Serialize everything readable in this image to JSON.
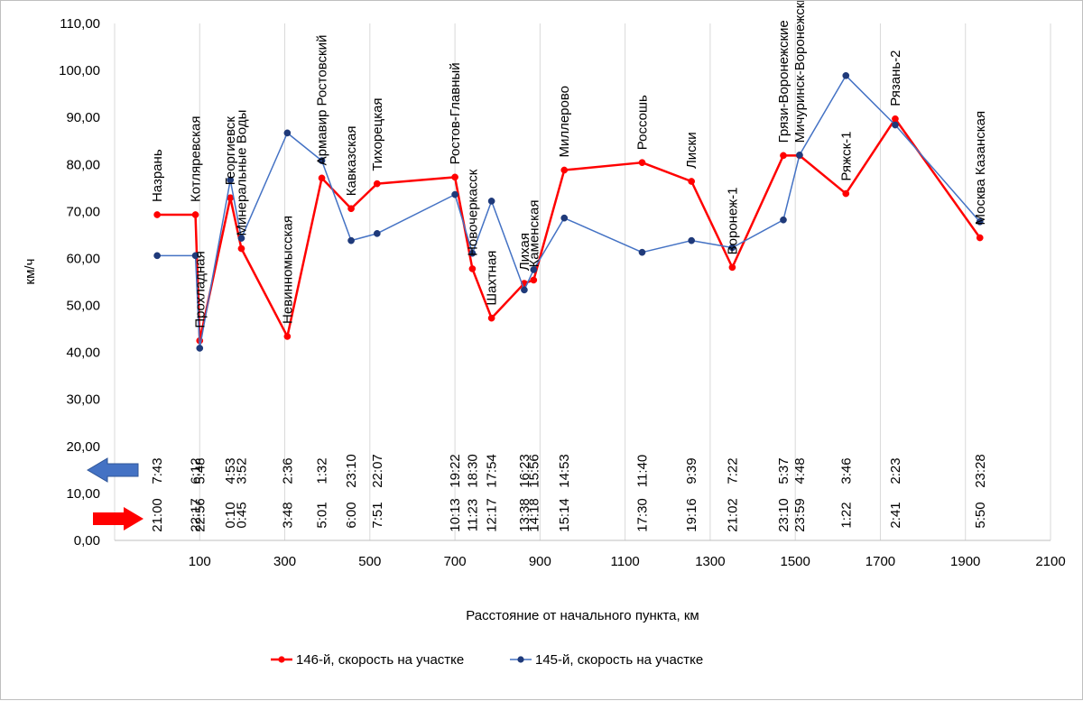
{
  "chart_data": {
    "type": "line",
    "xlabel": "Расстояние от начального пункта, км",
    "ylabel": "км/ч",
    "xlim": [
      -100,
      2100
    ],
    "ylim": [
      0,
      110
    ],
    "x_ticks": [
      "100",
      "300",
      "500",
      "700",
      "900",
      "1100",
      "1300",
      "1500",
      "1700",
      "1900",
      "2100"
    ],
    "x_tick_values": [
      100,
      300,
      500,
      700,
      900,
      1100,
      1300,
      1500,
      1700,
      1900,
      2100
    ],
    "y_ticks": [
      "0,00",
      "10,00",
      "20,00",
      "30,00",
      "40,00",
      "50,00",
      "60,00",
      "70,00",
      "80,00",
      "90,00",
      "100,00",
      "110,00"
    ],
    "y_tick_values": [
      0,
      10,
      20,
      30,
      40,
      50,
      60,
      70,
      80,
      90,
      100,
      110
    ],
    "gridlines": "vertical",
    "legend_position": "bottom",
    "series": [
      {
        "name": "146-й, скорость на участке",
        "color": "#ff0000",
        "x": [
          0,
          90,
          100,
          172,
          198,
          306,
          387,
          456,
          517,
          700,
          741,
          786,
          863,
          885,
          957,
          1140,
          1256,
          1352,
          1472,
          1510,
          1619,
          1735,
          1934
        ],
        "values": [
          69.3,
          69.3,
          42.5,
          72.9,
          62.1,
          43.4,
          77.1,
          70.6,
          75.9,
          77.3,
          57.8,
          47.3,
          54.7,
          55.4,
          78.8,
          80.4,
          76.4,
          58.1,
          81.9,
          81.9,
          73.8,
          89.7,
          64.4
        ]
      },
      {
        "name": "145-й, скорость на участке",
        "color": "#1f3a7a",
        "line_color": "#4472c4",
        "x": [
          0,
          90,
          100,
          172,
          198,
          306,
          387,
          456,
          517,
          700,
          741,
          786,
          863,
          885,
          957,
          1140,
          1256,
          1352,
          1472,
          1510,
          1619,
          1735,
          1934
        ],
        "values": [
          60.6,
          60.6,
          40.9,
          76.7,
          64.3,
          86.7,
          80.8,
          63.8,
          65.3,
          73.6,
          61.1,
          72.2,
          53.3,
          57.6,
          68.6,
          61.3,
          63.8,
          62.3,
          68.2,
          82.0,
          98.9,
          88.4,
          67.8
        ]
      }
    ],
    "stations": [
      {
        "name": "Назрань",
        "km": 0
      },
      {
        "name": "Котляревская",
        "km": 90
      },
      {
        "name": "Прохладная",
        "km": 100
      },
      {
        "name": "Георгиевск",
        "km": 172
      },
      {
        "name": "Минеральные Воды",
        "km": 198
      },
      {
        "name": "Невинномысская",
        "km": 306
      },
      {
        "name": "Армавир Ростовский",
        "km": 387
      },
      {
        "name": "Кавказская",
        "km": 456
      },
      {
        "name": "Тихорецкая",
        "km": 517
      },
      {
        "name": "Ростов-Главный",
        "km": 700
      },
      {
        "name": "Новочеркасск",
        "km": 741
      },
      {
        "name": "Шахтная",
        "km": 786
      },
      {
        "name": "Лихая",
        "km": 863
      },
      {
        "name": "Каменская",
        "km": 885
      },
      {
        "name": "Миллерово",
        "km": 957
      },
      {
        "name": "Россошь",
        "km": 1140
      },
      {
        "name": "Лиски",
        "km": 1256
      },
      {
        "name": "Воронеж-1",
        "km": 1352
      },
      {
        "name": "Грязи-Воронежские",
        "km": 1472
      },
      {
        "name": "Мичуринск-Воронежский",
        "km": 1510
      },
      {
        "name": "Ряжск-1",
        "km": 1619
      },
      {
        "name": "Рязань-2",
        "km": 1735
      },
      {
        "name": "Москва Казанская",
        "km": 1934
      }
    ],
    "times_145": [
      {
        "km": 0,
        "time": "7:43"
      },
      {
        "km": 90,
        "time": "6:12"
      },
      {
        "km": 100,
        "time": "5:48"
      },
      {
        "km": 172,
        "time": "4:53"
      },
      {
        "km": 198,
        "time": "3:52"
      },
      {
        "km": 306,
        "time": "2:36"
      },
      {
        "km": 387,
        "time": "1:32"
      },
      {
        "km": 456,
        "time": "23:10"
      },
      {
        "km": 517,
        "time": "22:07"
      },
      {
        "km": 700,
        "time": "19:22"
      },
      {
        "km": 741,
        "time": "18:30"
      },
      {
        "km": 786,
        "time": "17:54"
      },
      {
        "km": 863,
        "time": "16:23"
      },
      {
        "km": 885,
        "time": "15:56"
      },
      {
        "km": 957,
        "time": "14:53"
      },
      {
        "km": 1140,
        "time": "11:40"
      },
      {
        "km": 1256,
        "time": "9:39"
      },
      {
        "km": 1352,
        "time": "7:22"
      },
      {
        "km": 1472,
        "time": "5:37"
      },
      {
        "km": 1510,
        "time": "4:48"
      },
      {
        "km": 1619,
        "time": "3:46"
      },
      {
        "km": 1735,
        "time": "2:23"
      },
      {
        "km": 1934,
        "time": "23:28"
      }
    ],
    "times_146": [
      {
        "km": 0,
        "time": "21:00"
      },
      {
        "km": 90,
        "time": "22:17"
      },
      {
        "km": 100,
        "time": "22:56"
      },
      {
        "km": 172,
        "time": "0:10"
      },
      {
        "km": 198,
        "time": "0:45"
      },
      {
        "km": 306,
        "time": "3:48"
      },
      {
        "km": 387,
        "time": "5:01"
      },
      {
        "km": 456,
        "time": "6:00"
      },
      {
        "km": 517,
        "time": "7:51"
      },
      {
        "km": 700,
        "time": "10:13"
      },
      {
        "km": 741,
        "time": "11:23"
      },
      {
        "km": 786,
        "time": "12:17"
      },
      {
        "km": 863,
        "time": "13:38"
      },
      {
        "km": 885,
        "time": "14:18"
      },
      {
        "km": 957,
        "time": "15:14"
      },
      {
        "km": 1140,
        "time": "17:30"
      },
      {
        "km": 1256,
        "time": "19:16"
      },
      {
        "km": 1352,
        "time": "21:02"
      },
      {
        "km": 1472,
        "time": "23:10"
      },
      {
        "km": 1510,
        "time": "23:59"
      },
      {
        "km": 1619,
        "time": "1:22"
      },
      {
        "km": 1735,
        "time": "2:41"
      },
      {
        "km": 1934,
        "time": "5:50"
      }
    ],
    "direction_arrows": {
      "train_145_direction": "left",
      "train_146_direction": "right",
      "train_145_color": "#4472c4",
      "train_146_color": "#ff0000"
    }
  }
}
